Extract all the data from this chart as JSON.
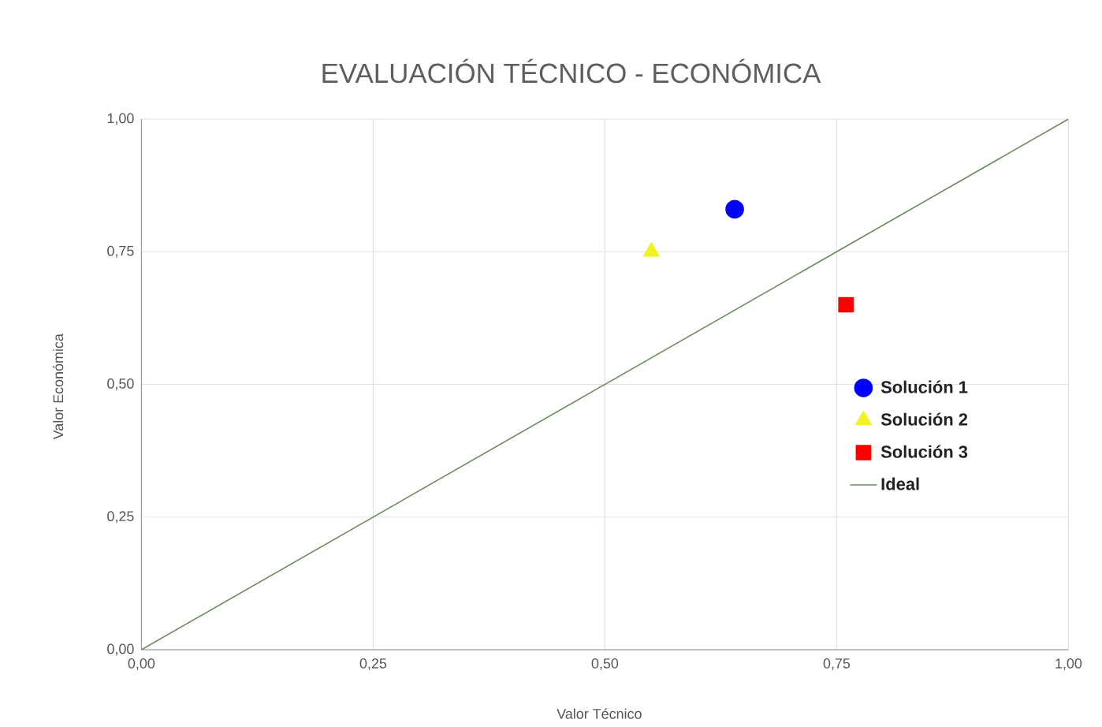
{
  "chart_data": {
    "type": "scatter",
    "title": "EVALUACIÓN TÉCNICO - ECONÓMICA",
    "xlabel": "Valor Técnico",
    "ylabel": "Valor Económica",
    "xlim": [
      0,
      1
    ],
    "ylim": [
      0,
      1
    ],
    "xticks": [
      {
        "value": 0,
        "label": "0,00"
      },
      {
        "value": 0.25,
        "label": "0,25"
      },
      {
        "value": 0.5,
        "label": "0,50"
      },
      {
        "value": 0.75,
        "label": "0,75"
      },
      {
        "value": 1,
        "label": "1,00"
      }
    ],
    "yticks": [
      {
        "value": 0,
        "label": "0,00"
      },
      {
        "value": 0.25,
        "label": "0,25"
      },
      {
        "value": 0.5,
        "label": "0,50"
      },
      {
        "value": 0.75,
        "label": "0,75"
      },
      {
        "value": 1,
        "label": "1,00"
      }
    ],
    "grid": true,
    "legend": "right",
    "series": [
      {
        "name": "Solución 1",
        "color": "#0000ff",
        "marker": "circle",
        "x": [
          0.64
        ],
        "values": [
          0.83
        ]
      },
      {
        "name": "Solución 2",
        "color": "#f2f21e",
        "marker": "triangle",
        "x": [
          0.55
        ],
        "values": [
          0.75
        ]
      },
      {
        "name": "Solución 3",
        "color": "#ff0000",
        "marker": "square",
        "x": [
          0.76
        ],
        "values": [
          0.65
        ]
      },
      {
        "name": "Ideal",
        "type": "line",
        "color": "#6a8a5e",
        "marker": "none",
        "x": [
          0,
          1
        ],
        "values": [
          0,
          1
        ]
      }
    ]
  }
}
